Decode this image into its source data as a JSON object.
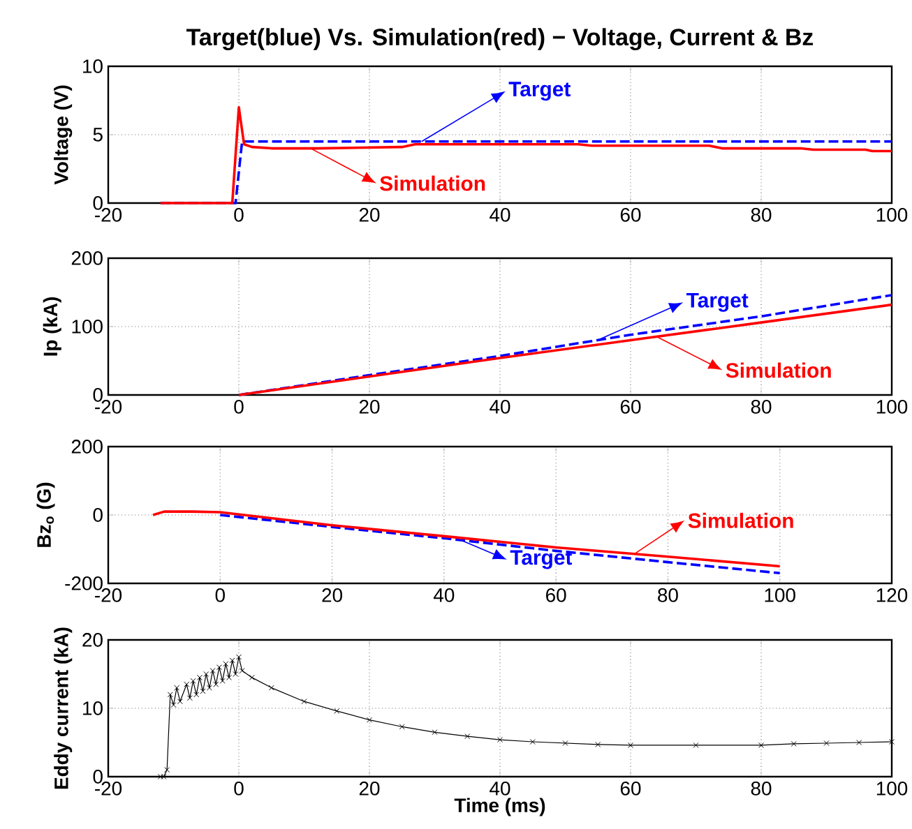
{
  "chart_data": [
    {
      "type": "line",
      "title": "Target(blue) Vs. Simulation(red) − Voltage, Current & Bz",
      "ylabel": "Voltage (V)",
      "xlim": [
        -20,
        100
      ],
      "ylim": [
        0,
        10
      ],
      "xticks": [
        -20,
        0,
        20,
        40,
        60,
        80,
        100
      ],
      "yticks": [
        0,
        5,
        10
      ],
      "grid": true,
      "legend": "bottom left",
      "series": [
        {
          "name": "Target",
          "color": "#0000ff",
          "line_style": "dashed",
          "x": [
            -12,
            -0.5,
            0.5,
            100
          ],
          "values": [
            0,
            0,
            4.5,
            4.5
          ]
        },
        {
          "name": "Simulation",
          "color": "#ff0000",
          "line_style": "solid",
          "x": [
            -12,
            -1,
            0,
            0.8,
            2,
            5,
            12,
            25,
            27,
            52,
            54,
            72,
            74,
            86,
            88,
            96,
            97,
            100
          ],
          "values": [
            0,
            0,
            7,
            4.3,
            4.1,
            4.0,
            4.0,
            4.1,
            4.3,
            4.3,
            4.2,
            4.2,
            4.0,
            4.0,
            3.9,
            3.9,
            3.8,
            3.8
          ]
        }
      ]
    },
    {
      "type": "line",
      "ylabel": "Ip (kA)",
      "xlim": [
        -20,
        100
      ],
      "ylim": [
        0,
        200
      ],
      "xticks": [
        -20,
        0,
        20,
        40,
        60,
        80,
        100
      ],
      "yticks": [
        0,
        100,
        200
      ],
      "grid": true,
      "legend": "right",
      "series": [
        {
          "name": "Target",
          "color": "#0000ff",
          "line_style": "dashed",
          "x": [
            0,
            20,
            40,
            60,
            80,
            100
          ],
          "values": [
            0,
            29,
            57,
            88,
            115,
            146
          ]
        },
        {
          "name": "Simulation",
          "color": "#ff0000",
          "line_style": "solid",
          "x": [
            0,
            20,
            40,
            60,
            80,
            100
          ],
          "values": [
            0,
            27,
            54,
            80,
            106,
            132
          ]
        }
      ]
    },
    {
      "type": "line",
      "ylabel": "Bz$_{o}$ (G)",
      "xlim": [
        -20,
        120
      ],
      "ylim": [
        -200,
        200
      ],
      "xticks": [
        -20,
        0,
        20,
        40,
        60,
        80,
        100,
        120
      ],
      "yticks": [
        -200,
        0,
        200
      ],
      "grid": true,
      "legend": "bottom right",
      "series": [
        {
          "name": "Target",
          "color": "#0000ff",
          "line_style": "dashed",
          "x": [
            0,
            20,
            40,
            60,
            80,
            100
          ],
          "values": [
            0,
            -35,
            -68,
            -105,
            -138,
            -170
          ]
        },
        {
          "name": "Simulation",
          "color": "#ff0000",
          "line_style": "solid",
          "x": [
            -12,
            -10,
            -5,
            0,
            20,
            40,
            60,
            80,
            100
          ],
          "values": [
            0,
            10,
            10,
            8,
            -30,
            -62,
            -95,
            -122,
            -150
          ]
        }
      ]
    },
    {
      "type": "line",
      "xlabel": "Time (ms)",
      "ylabel": "Eddy current (kA)",
      "xlim": [
        -20,
        100
      ],
      "ylim": [
        0,
        20
      ],
      "xticks": [
        -20,
        0,
        20,
        40,
        60,
        80,
        100
      ],
      "yticks": [
        0,
        10,
        20
      ],
      "grid": true,
      "marker": "cross",
      "series": [
        {
          "color": "#000000",
          "line_style": "solid",
          "x": [
            -12,
            -11.5,
            -11,
            -10.5,
            -10,
            -9.5,
            -9,
            -8,
            -7.5,
            -7,
            -6.5,
            -6,
            -5.5,
            -5,
            -4.5,
            -4,
            -3.5,
            -3,
            -2.5,
            -2,
            -1.5,
            -1,
            -0.5,
            0,
            0.5,
            2,
            5,
            10,
            15,
            20,
            25,
            30,
            35,
            40,
            45,
            50,
            55,
            60,
            70,
            80,
            85,
            90,
            95,
            100
          ],
          "values": [
            0,
            0,
            1,
            12,
            10.5,
            13,
            11,
            13.5,
            11.5,
            14,
            12,
            14.5,
            12.5,
            15,
            13,
            15.5,
            13.5,
            16,
            14,
            16.5,
            14.5,
            17,
            15,
            17.5,
            15.5,
            14.5,
            13,
            11,
            9.6,
            8.3,
            7.3,
            6.5,
            5.9,
            5.4,
            5.1,
            4.9,
            4.7,
            4.6,
            4.6,
            4.6,
            4.8,
            4.9,
            5.0,
            5.1
          ]
        }
      ]
    }
  ]
}
